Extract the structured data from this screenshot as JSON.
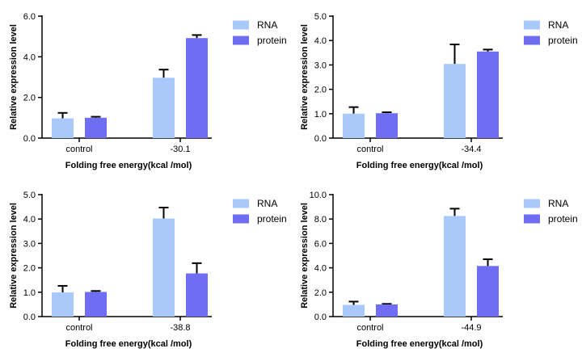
{
  "colors": {
    "rna": "#a9c9fa",
    "protein": "#6f6ef3",
    "axis": "#000000"
  },
  "chart_data": [
    {
      "type": "bar",
      "categories": [
        "control",
        "-30.1"
      ],
      "series": [
        {
          "name": "RNA",
          "values": [
            0.97,
            2.97
          ],
          "errors": [
            0.27,
            0.4
          ]
        },
        {
          "name": "protein",
          "values": [
            1.0,
            4.92
          ],
          "errors": [
            0.05,
            0.15
          ]
        }
      ],
      "ylim": [
        0,
        6
      ],
      "yticks": [
        "0.0",
        "2.0",
        "4.0",
        "6.0"
      ],
      "ytick_values": [
        0,
        2,
        4,
        6
      ],
      "xlabel": "Folding free energy(kcal /mol)",
      "ylabel": "Relative expression level",
      "legend": "right"
    },
    {
      "type": "bar",
      "categories": [
        "control",
        "-34.4"
      ],
      "series": [
        {
          "name": "RNA",
          "values": [
            1.0,
            3.04
          ],
          "errors": [
            0.27,
            0.8
          ]
        },
        {
          "name": "protein",
          "values": [
            1.02,
            3.55
          ],
          "errors": [
            0.04,
            0.08
          ]
        }
      ],
      "ylim": [
        0,
        5
      ],
      "yticks": [
        "0.0",
        "1.0",
        "2.0",
        "3.0",
        "4.0",
        "5.0"
      ],
      "ytick_values": [
        0,
        1,
        2,
        3,
        4,
        5
      ],
      "xlabel": "Folding free energy(kcal /mol)",
      "ylabel": "Relative expression level",
      "legend": "right"
    },
    {
      "type": "bar",
      "categories": [
        "control",
        "-38.8"
      ],
      "series": [
        {
          "name": "RNA",
          "values": [
            0.99,
            4.02
          ],
          "errors": [
            0.27,
            0.45
          ]
        },
        {
          "name": "protein",
          "values": [
            1.01,
            1.77
          ],
          "errors": [
            0.04,
            0.42
          ]
        }
      ],
      "ylim": [
        0,
        5
      ],
      "yticks": [
        "0.0",
        "1.0",
        "2.0",
        "3.0",
        "4.0",
        "5.0"
      ],
      "ytick_values": [
        0,
        1,
        2,
        3,
        4,
        5
      ],
      "xlabel": "Folding free energy(kcal /mol)",
      "ylabel": "Relative expression level",
      "legend": "right"
    },
    {
      "type": "bar",
      "categories": [
        "control",
        "-44.9"
      ],
      "series": [
        {
          "name": "RNA",
          "values": [
            0.96,
            8.25
          ],
          "errors": [
            0.27,
            0.6
          ]
        },
        {
          "name": "protein",
          "values": [
            1.0,
            4.15
          ],
          "errors": [
            0.04,
            0.55
          ]
        }
      ],
      "ylim": [
        0,
        10
      ],
      "yticks": [
        "0.0",
        "2.0",
        "4.0",
        "6.0",
        "8.0",
        "10.0"
      ],
      "ytick_values": [
        0,
        2,
        4,
        6,
        8,
        10
      ],
      "xlabel": "Folding free energy(kcal /mol)",
      "ylabel": "Relative expression level",
      "legend": "right"
    }
  ]
}
